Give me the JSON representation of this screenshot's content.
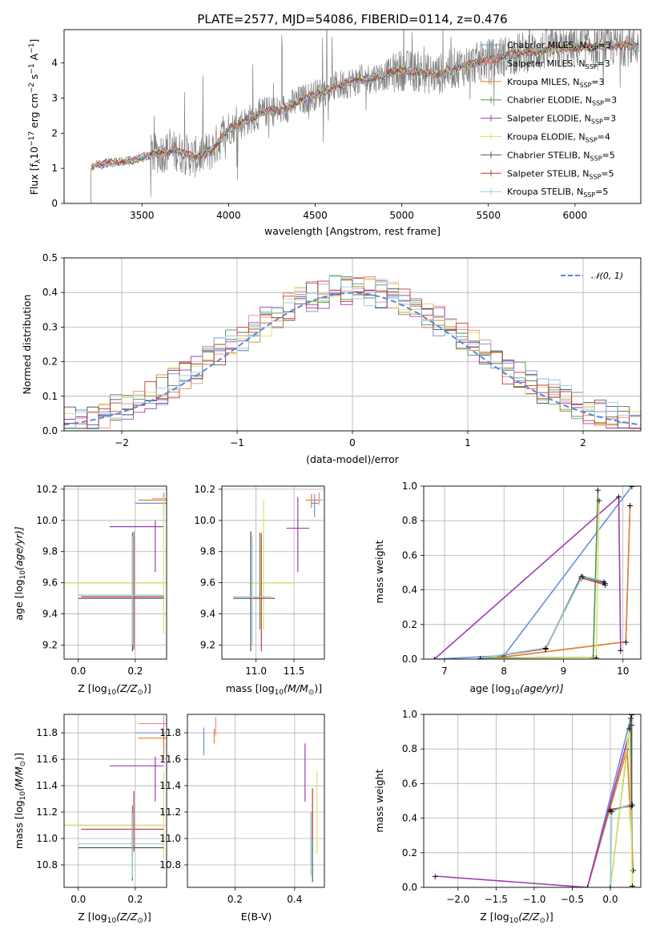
{
  "colors": {
    "Chabrier MILES": "#6a8fd8",
    "Salpeter MILES": "#f08a8a",
    "Kroupa MILES": "#e0812f",
    "Chabrier ELODIE": "#5a8f5a",
    "Salpeter ELODIE": "#9e3db0",
    "Kroupa ELODIE": "#d9e36a",
    "Chabrier STELIB": "#555555",
    "Salpeter STELIB": "#c23a3a",
    "Kroupa STELIB": "#8fd0dd",
    "gauss": "#5a86d6",
    "gray": "#808080"
  },
  "chart_data": [
    {
      "id": "spectrum",
      "type": "line",
      "title": "PLATE=2577, MJD=54086, FIBERID=0114, z=0.476",
      "xlabel": "wavelength [Angstrom, rest frame]",
      "ylabel": "Flux [f",
      "ylabel_sub": "λ",
      "ylabel_rest": "10",
      "ylabel_exp": "−17",
      "ylabel_units": " erg cm",
      "ylabel_u2": "−2",
      "ylabel_s": " s",
      "ylabel_u3": "−1",
      "ylabel_A": " A",
      "ylabel_u4": "−1",
      "ylabel_end": "]",
      "xlim": [
        3050,
        6380
      ],
      "ylim": [
        0,
        4.95
      ],
      "xticks": [
        "3500",
        "4000",
        "4500",
        "5000",
        "5500",
        "6000"
      ],
      "yticks": [
        "0",
        "1",
        "2",
        "3",
        "4"
      ],
      "grid": false,
      "legend_position": "right",
      "legend": [
        {
          "name": "Chabrier MILES",
          "nssp": "3"
        },
        {
          "name": "Salpeter MILES",
          "nssp": "3"
        },
        {
          "name": "Kroupa MILES",
          "nssp": "3"
        },
        {
          "name": "Chabrier ELODIE",
          "nssp": "3"
        },
        {
          "name": "Salpeter ELODIE",
          "nssp": "3"
        },
        {
          "name": "Kroupa ELODIE",
          "nssp": "4"
        },
        {
          "name": "Chabrier STELIB",
          "nssp": "5"
        },
        {
          "name": "Salpeter STELIB",
          "nssp": "5"
        },
        {
          "name": "Kroupa STELIB",
          "nssp": "5"
        }
      ],
      "legend_prefix": "N",
      "legend_sub": "SSP",
      "continuum": [
        [
          3200,
          1.05
        ],
        [
          3300,
          1.15
        ],
        [
          3400,
          1.2
        ],
        [
          3500,
          1.3
        ],
        [
          3600,
          1.45
        ],
        [
          3700,
          1.5
        ],
        [
          3800,
          1.3
        ],
        [
          3900,
          1.5
        ],
        [
          4000,
          2.1
        ],
        [
          4100,
          2.35
        ],
        [
          4200,
          2.6
        ],
        [
          4300,
          2.65
        ],
        [
          4400,
          2.9
        ],
        [
          4500,
          3.1
        ],
        [
          4600,
          3.3
        ],
        [
          4700,
          3.45
        ],
        [
          4800,
          3.55
        ],
        [
          4900,
          3.65
        ],
        [
          5000,
          3.8
        ],
        [
          5100,
          3.75
        ],
        [
          5200,
          3.65
        ],
        [
          5300,
          3.85
        ],
        [
          5400,
          3.95
        ],
        [
          5500,
          4.1
        ],
        [
          5600,
          4.2
        ],
        [
          5700,
          4.3
        ],
        [
          5800,
          4.35
        ],
        [
          5900,
          4.4
        ],
        [
          6000,
          4.45
        ],
        [
          6100,
          4.45
        ],
        [
          6200,
          4.5
        ],
        [
          6300,
          4.5
        ]
      ]
    },
    {
      "id": "residuals",
      "type": "histogram",
      "xlabel": "(data-model)/error",
      "ylabel": "Normed distribution",
      "xlim": [
        -2.5,
        2.5
      ],
      "ylim": [
        0,
        0.5
      ],
      "xticks": [
        "−2",
        "−1",
        "0",
        "1",
        "2"
      ],
      "yticks": [
        "0.0",
        "0.1",
        "0.2",
        "0.3",
        "0.4",
        "0.5"
      ],
      "grid": true,
      "legend_position": "top-right",
      "legend_label": "𝒩(0, 1)",
      "bins": 50
    },
    {
      "id": "age-Z",
      "type": "scatter",
      "xlabel": "Z [log",
      "xlabel_sub": "10",
      "xlabel_rest": "(Z/Z",
      "xlabel_end": ")]",
      "ylabel": "age  [log",
      "ylabel_sub": "10",
      "ylabel_rest": "(age/yr)]",
      "xlim": [
        -0.05,
        0.31
      ],
      "ylim": [
        9.11,
        10.22
      ],
      "xticks": [
        "0.0",
        "0.2"
      ],
      "yticks": [
        "9.2",
        "9.4",
        "9.6",
        "9.8",
        "10.0",
        "10.2"
      ],
      "grid": true
    },
    {
      "id": "age-mass",
      "type": "scatter",
      "xlabel": "mass [log",
      "xlabel_sub": "10",
      "xlabel_rest": "(M/M",
      "xlabel_end": ")]",
      "xlim": [
        10.55,
        11.9
      ],
      "ylim": [
        9.11,
        10.22
      ],
      "xticks": [
        "11.0",
        "11.5"
      ],
      "yticks": [
        "9.2",
        "9.4",
        "9.6",
        "9.8",
        "10.0",
        "10.2"
      ],
      "grid": true
    },
    {
      "id": "weight-age",
      "type": "line",
      "xlabel": "age  [log",
      "xlabel_sub": "10",
      "xlabel_rest": "(age/yr)]",
      "ylabel": "mass weight",
      "xlim": [
        6.65,
        10.3
      ],
      "ylim": [
        0,
        1
      ],
      "xticks": [
        "7",
        "8",
        "9",
        "10"
      ],
      "yticks": [
        "0.0",
        "0.2",
        "0.4",
        "0.6",
        "0.8",
        "1.0"
      ],
      "grid": true
    },
    {
      "id": "mass-Z",
      "type": "scatter",
      "xlabel": "Z [log",
      "xlabel_sub": "10",
      "xlabel_rest": "(Z/Z",
      "xlabel_end": ")]",
      "ylabel": "mass [log",
      "ylabel_sub": "10",
      "ylabel_rest": "(M/M",
      "ylabel_end": ")]",
      "xlim": [
        -0.05,
        0.31
      ],
      "ylim": [
        10.63,
        11.94
      ],
      "xticks": [
        "0.0",
        "0.2"
      ],
      "yticks": [
        "10.8",
        "11.0",
        "11.2",
        "11.4",
        "11.6",
        "11.8"
      ],
      "grid": true
    },
    {
      "id": "mass-EBV",
      "type": "scatter",
      "xlabel": "E(B-V)",
      "xlim": [
        0.04,
        0.5
      ],
      "ylim": [
        10.63,
        11.94
      ],
      "xticks": [
        "0.2",
        "0.4"
      ],
      "yticks": [
        "10.8",
        "11.0",
        "11.2",
        "11.4",
        "11.6",
        "11.8"
      ],
      "grid": true
    },
    {
      "id": "weight-Z",
      "type": "line",
      "xlabel": "Z [log",
      "xlabel_sub": "10",
      "xlabel_rest": "(Z/Z",
      "xlabel_end": ")]",
      "ylabel": "mass weight",
      "xlim": [
        -2.45,
        0.4
      ],
      "ylim": [
        0,
        1
      ],
      "xticks": [
        "−2.0",
        "−1.5",
        "−1.0",
        "−0.5",
        "0.0"
      ],
      "yticks": [
        "0.0",
        "0.2",
        "0.4",
        "0.6",
        "0.8",
        "1.0"
      ],
      "grid": true
    }
  ]
}
